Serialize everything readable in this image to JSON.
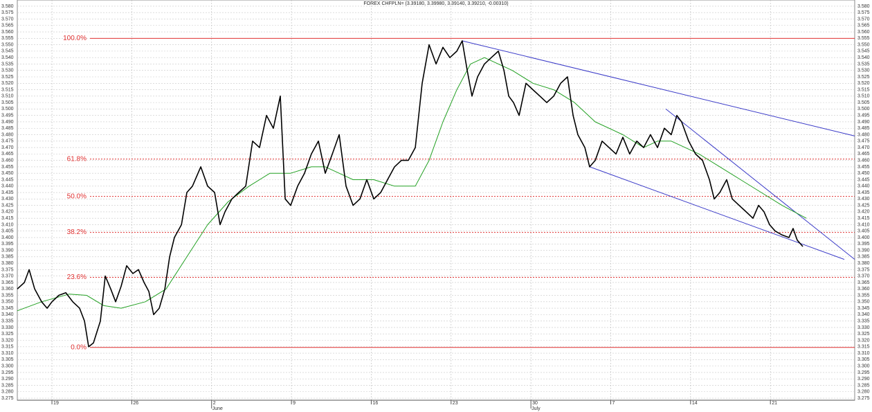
{
  "chart_data": {
    "type": "line",
    "title": "FOREX CHFPLN= (3.39180, 3.39980, 3.39140, 3.39210, -0.00310)",
    "xlim": [
      -2.17,
      50.28
    ],
    "ylim": [
      3.2734,
      3.5848
    ],
    "grid": true,
    "xticks": [
      {
        "value": 0,
        "label": "19"
      },
      {
        "value": 5,
        "label": "26"
      },
      {
        "value": 10,
        "label": "2"
      },
      {
        "value": 15,
        "label": "9"
      },
      {
        "value": 20,
        "label": "16"
      },
      {
        "value": 25,
        "label": "23"
      },
      {
        "value": 30,
        "label": "30"
      },
      {
        "value": 35,
        "label": "7"
      },
      {
        "value": 40,
        "label": "14"
      },
      {
        "value": 45,
        "label": "21"
      }
    ],
    "months": [
      {
        "value": 10,
        "label": "June"
      },
      {
        "value": 30,
        "label": "July"
      }
    ],
    "yticks": [
      3.275,
      {
        "value": 3.28,
        "label": "3.280"
      },
      3.285,
      {
        "value": 3.29,
        "label": "3.290"
      },
      3.295,
      {
        "value": 3.3,
        "label": "3.300"
      },
      3.305,
      {
        "value": 3.31,
        "label": "3.310"
      },
      3.315,
      {
        "value": 3.32,
        "label": "3.320"
      },
      3.325,
      {
        "value": 3.33,
        "label": "3.330"
      },
      3.335,
      {
        "value": 3.34,
        "label": "3.340"
      },
      3.345,
      {
        "value": 3.35,
        "label": "3.350"
      },
      3.355,
      {
        "value": 3.36,
        "label": "3.360"
      },
      3.365,
      {
        "value": 3.37,
        "label": "3.370"
      },
      3.375,
      {
        "value": 3.38,
        "label": "3.380"
      },
      3.385,
      {
        "value": 3.39,
        "label": "3.390"
      },
      3.395,
      {
        "value": 3.4,
        "label": "3.400"
      },
      3.405,
      {
        "value": 3.41,
        "label": "3.410"
      },
      3.415,
      {
        "value": 3.42,
        "label": "3.420"
      },
      3.425,
      {
        "value": 3.43,
        "label": "3.430"
      },
      3.435,
      {
        "value": 3.44,
        "label": "3.440"
      },
      3.445,
      {
        "value": 3.45,
        "label": "3.450"
      },
      3.455,
      {
        "value": 3.46,
        "label": "3.460"
      },
      3.465,
      {
        "value": 3.47,
        "label": "3.470"
      },
      3.475,
      {
        "value": 3.48,
        "label": "3.480"
      },
      3.485,
      {
        "value": 3.49,
        "label": "3.490"
      },
      3.495,
      {
        "value": 3.5,
        "label": "3.500"
      },
      3.505,
      {
        "value": 3.51,
        "label": "3.510"
      },
      3.515,
      {
        "value": 3.52,
        "label": "3.520"
      },
      3.525,
      {
        "value": 3.53,
        "label": "3.530"
      },
      3.535,
      {
        "value": 3.54,
        "label": "3.540"
      },
      3.545,
      {
        "value": 3.55,
        "label": "3.550"
      },
      3.555,
      {
        "value": 3.56,
        "label": "3.560"
      },
      3.565,
      {
        "value": 3.57,
        "label": "3.570"
      },
      3.575,
      {
        "value": 3.58,
        "label": "3.580"
      }
    ],
    "fib_levels": [
      {
        "label": "100.0%",
        "value": 3.555,
        "style": "solid"
      },
      {
        "label": "61.8%",
        "value": 3.461,
        "style": "dotted"
      },
      {
        "label": "50.0%",
        "value": 3.432,
        "style": "dotted"
      },
      {
        "label": "38.2%",
        "value": 3.404,
        "style": "dotted"
      },
      {
        "label": "23.6%",
        "value": 3.369,
        "style": "dotted"
      },
      {
        "label": "0.0%",
        "value": 3.3145,
        "style": "solid"
      }
    ],
    "fib_color": "#e03030",
    "series": [
      {
        "color": "#000000",
        "width": 1.6,
        "x": [
          -2.17,
          -1.73,
          -1.43,
          -1.08,
          -0.65,
          -0.3,
          0,
          0.43,
          0.87,
          1.3,
          1.73,
          2.04,
          2.3,
          2.6,
          3.03,
          3.34,
          3.68,
          3.99,
          4.33,
          4.68,
          5.07,
          5.42,
          5.77,
          6.07,
          6.37,
          6.72,
          7.07,
          7.37,
          7.67,
          8.11,
          8.45,
          8.8,
          9.32,
          9.75,
          10.19,
          10.53,
          10.84,
          11.27,
          11.7,
          12.14,
          12.57,
          13,
          13.44,
          13.87,
          14.3,
          14.61,
          14.95,
          15.39,
          15.82,
          16.25,
          16.69,
          17.12,
          17.56,
          17.99,
          18.42,
          18.86,
          19.29,
          19.72,
          20.16,
          20.59,
          21.02,
          21.46,
          21.89,
          22.32,
          22.76,
          23.19,
          23.62,
          24.06,
          24.49,
          24.92,
          25.36,
          25.7,
          26.01,
          26.31,
          26.66,
          27.09,
          27.52,
          27.96,
          28.31,
          28.61,
          28.91,
          29.26,
          29.69,
          30.13,
          30.56,
          30.99,
          31.43,
          31.86,
          32.29,
          32.64,
          32.94,
          33.38,
          33.68,
          34.03,
          34.46,
          34.89,
          35.33,
          35.76,
          36.19,
          36.63,
          37.06,
          37.49,
          37.93,
          38.36,
          38.79,
          39.14,
          39.44,
          39.88,
          40.31,
          40.75,
          41.18,
          41.48,
          41.83,
          42.26,
          42.61,
          43.04,
          43.48,
          43.91,
          44.26,
          44.6,
          44.95,
          45.3,
          45.73,
          46.16,
          46.42,
          46.68,
          47.03
        ],
        "values": [
          3.36,
          3.365,
          3.375,
          3.36,
          3.35,
          3.345,
          3.35,
          3.355,
          3.357,
          3.35,
          3.345,
          3.335,
          3.315,
          3.318,
          3.335,
          3.37,
          3.36,
          3.35,
          3.362,
          3.378,
          3.372,
          3.375,
          3.365,
          3.358,
          3.34,
          3.345,
          3.36,
          3.385,
          3.4,
          3.41,
          3.435,
          3.44,
          3.455,
          3.44,
          3.435,
          3.41,
          3.42,
          3.43,
          3.435,
          3.44,
          3.475,
          3.47,
          3.495,
          3.485,
          3.51,
          3.43,
          3.425,
          3.44,
          3.45,
          3.465,
          3.475,
          3.45,
          3.465,
          3.48,
          3.44,
          3.425,
          3.43,
          3.445,
          3.43,
          3.435,
          3.445,
          3.455,
          3.46,
          3.46,
          3.47,
          3.52,
          3.55,
          3.535,
          3.548,
          3.54,
          3.545,
          3.553,
          3.53,
          3.51,
          3.525,
          3.535,
          3.54,
          3.545,
          3.53,
          3.51,
          3.505,
          3.495,
          3.52,
          3.515,
          3.51,
          3.505,
          3.51,
          3.52,
          3.525,
          3.495,
          3.48,
          3.47,
          3.455,
          3.46,
          3.475,
          3.47,
          3.465,
          3.478,
          3.465,
          3.475,
          3.47,
          3.48,
          3.47,
          3.485,
          3.48,
          3.495,
          3.49,
          3.475,
          3.465,
          3.46,
          3.445,
          3.43,
          3.435,
          3.445,
          3.43,
          3.425,
          3.42,
          3.415,
          3.425,
          3.42,
          3.41,
          3.405,
          3.402,
          3.4,
          3.407,
          3.398,
          3.393
        ]
      },
      {
        "color": "#22a022",
        "width": 1,
        "x": [
          -2.17,
          -0.65,
          1.08,
          2.17,
          3.25,
          4.33,
          5.85,
          7.15,
          8.45,
          9.75,
          11.05,
          12.35,
          13.65,
          14.95,
          16.25,
          17.12,
          17.99,
          18.86,
          20.16,
          21.46,
          22.76,
          23.62,
          24.49,
          25.36,
          26.22,
          27.09,
          27.96,
          28.83,
          30.13,
          31.43,
          32.73,
          34.03,
          35.76,
          37.06,
          37.93,
          38.79,
          39.66,
          40.53,
          41.83,
          43.13,
          44.43,
          45.73,
          47.25
        ],
        "values": [
          3.343,
          3.35,
          3.356,
          3.355,
          3.347,
          3.345,
          3.35,
          3.36,
          3.385,
          3.41,
          3.428,
          3.44,
          3.45,
          3.45,
          3.455,
          3.455,
          3.45,
          3.445,
          3.445,
          3.44,
          3.44,
          3.46,
          3.49,
          3.515,
          3.535,
          3.54,
          3.535,
          3.53,
          3.52,
          3.515,
          3.505,
          3.49,
          3.48,
          3.47,
          3.475,
          3.475,
          3.47,
          3.465,
          3.455,
          3.445,
          3.435,
          3.425,
          3.415
        ]
      },
      {
        "color": "#3a3ac8",
        "width": 1,
        "x": [
          25.7,
          50.28
        ],
        "values": [
          3.553,
          3.479
        ]
      },
      {
        "color": "#3a3ac8",
        "width": 1,
        "x": [
          33.68,
          49.63
        ],
        "values": [
          3.455,
          3.383
        ]
      },
      {
        "color": "#3a3ac8",
        "width": 1,
        "x": [
          38.45,
          50.28
        ],
        "values": [
          3.5,
          3.383
        ]
      }
    ]
  }
}
